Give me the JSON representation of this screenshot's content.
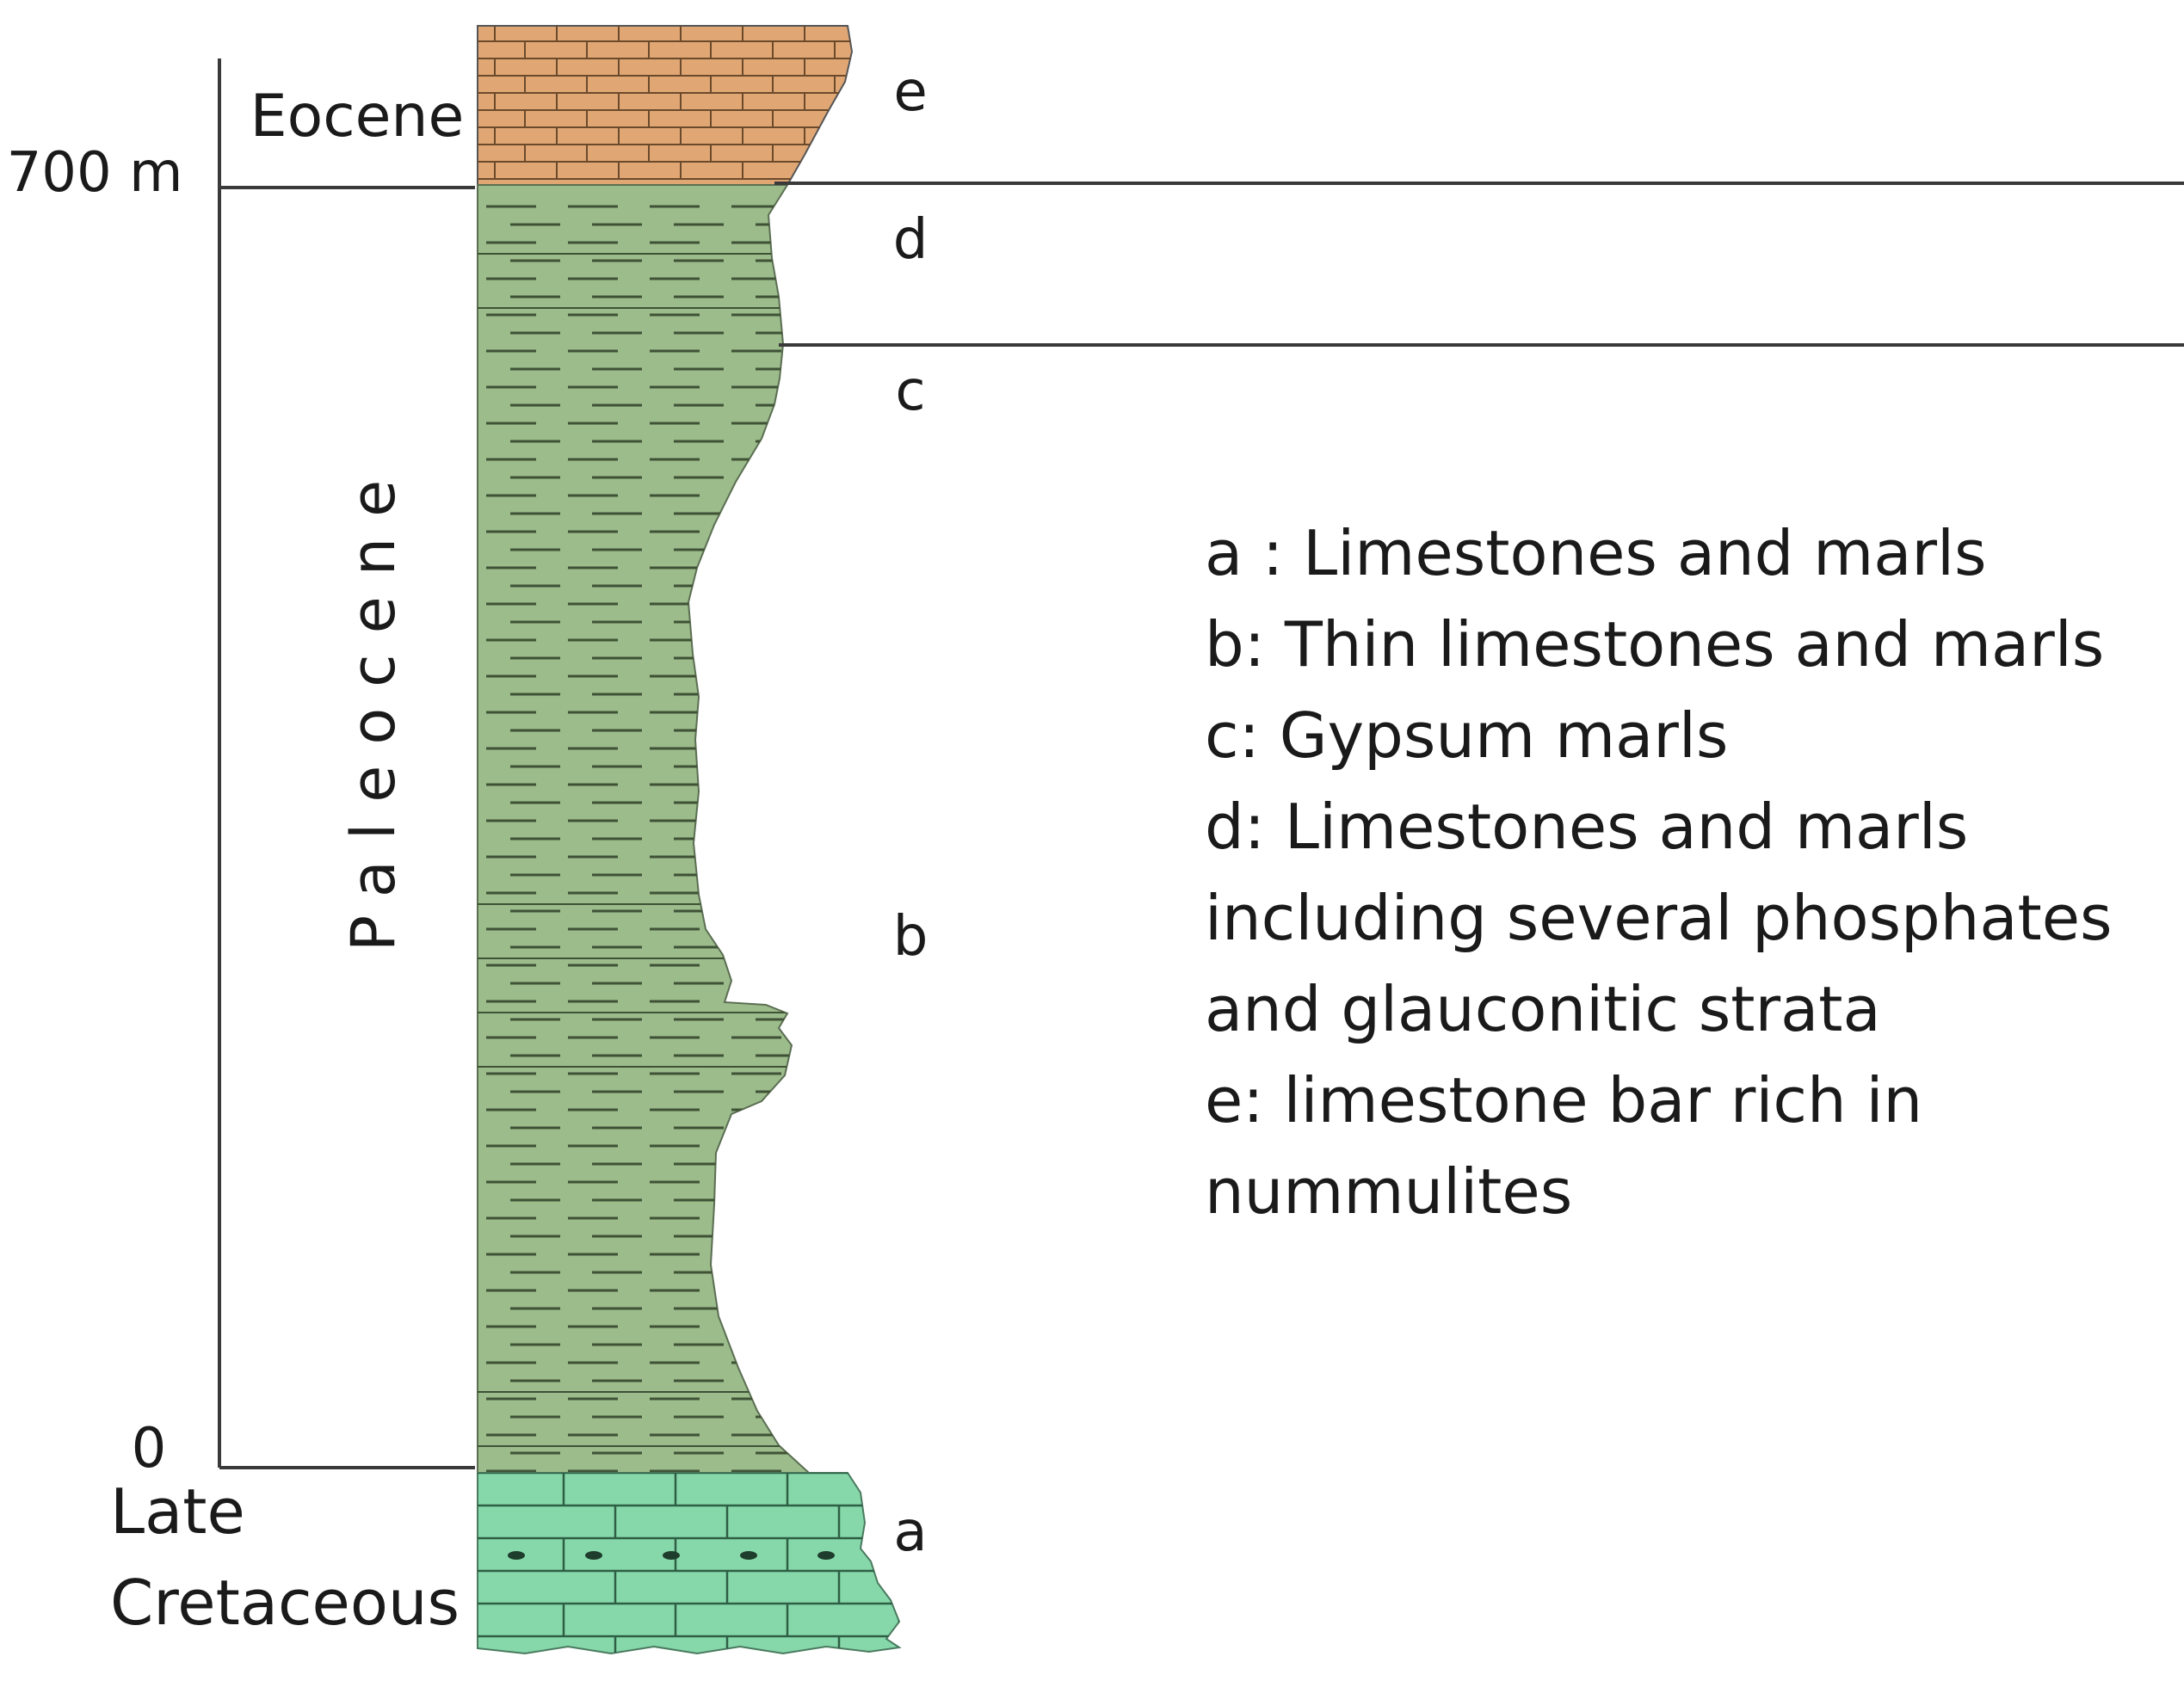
{
  "scale": {
    "top_label": "700 m",
    "bottom_label": "0"
  },
  "epochs": {
    "eocene": "Eocene",
    "paleocene": "Paleocene",
    "late_cretaceous_line1": "Late",
    "late_cretaceous_line2": "Cretaceous"
  },
  "units": [
    "e",
    "d",
    "c",
    "b",
    "a"
  ],
  "legend": [
    "a : Limestones and marls",
    "b: Thin limestones and marls",
    "c: Gypsum marls",
    "d: Limestones and marls",
    "including several phosphates",
    "and glauconitic strata",
    "e: limestone bar rich in",
    "nummulites"
  ],
  "colors": {
    "eocene_fill": "#e0a775",
    "paleocene_fill": "#9cbc8c",
    "cretaceous_fill": "#86d8aa",
    "line": "#3a3a3a"
  }
}
